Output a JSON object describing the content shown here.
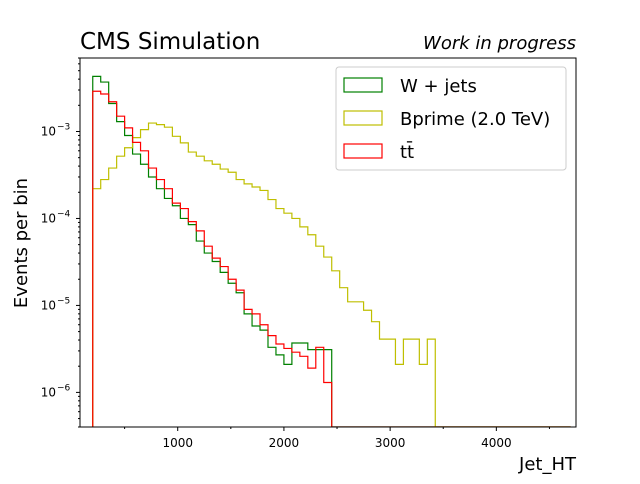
{
  "header": {
    "title": "CMS Simulation",
    "status": "Work in progress"
  },
  "chart_data": {
    "type": "histogram",
    "xlabel": "Jet_HT",
    "ylabel": "Events per bin",
    "xlim": [
      80,
      4750
    ],
    "ylim": [
      4e-07,
      0.007
    ],
    "yscale": "log",
    "grid": false,
    "legend_position": "top-right",
    "x_tick_labels": [
      "1000",
      "2000",
      "3000",
      "4000"
    ],
    "x_ticks": [
      1000,
      2000,
      3000,
      4000
    ],
    "y_tick_labels": [
      {
        "base": "10",
        "exp": "−3",
        "value": 0.001
      },
      {
        "base": "10",
        "exp": "−4",
        "value": 0.0001
      },
      {
        "base": "10",
        "exp": "−5",
        "value": 1e-05
      },
      {
        "base": "10",
        "exp": "−6",
        "value": 1e-06
      }
    ],
    "bin_edges_start": 200,
    "bin_width": 75,
    "series": [
      {
        "name": "W + jets",
        "color": "#008000",
        "values": [
          0.0043,
          0.0037,
          0.0021,
          0.0013,
          0.0009,
          0.00055,
          0.00042,
          0.0003,
          0.00022,
          0.00017,
          0.00014,
          0.0001,
          8.5e-05,
          5.5e-05,
          4e-05,
          3.2e-05,
          2.4e-05,
          1.8e-05,
          1.4e-05,
          8e-06,
          5.8e-06,
          5.2e-06,
          3.3e-06,
          2.7e-06,
          2.1e-06,
          3.7e-06,
          3.7e-06,
          3.1e-06,
          3.1e-06,
          3.1e-06,
          4e-07,
          4e-07,
          4e-07,
          4e-07,
          4e-07,
          4e-07,
          4e-07,
          4e-07,
          4e-07,
          4e-07,
          4e-07,
          4e-07,
          4e-07,
          4e-07,
          4e-07,
          4e-07,
          4e-07,
          4e-07,
          4e-07,
          4e-07,
          4e-07,
          4e-07,
          4e-07,
          4e-07,
          4e-07,
          4e-07,
          4e-07,
          4e-07,
          4e-07,
          4e-07
        ]
      },
      {
        "name": "Bprime(2.0 TeV)",
        "color": "#bfbf00",
        "values": [
          0.00022,
          0.00028,
          0.00038,
          0.00052,
          0.00065,
          0.00085,
          0.00105,
          0.00125,
          0.0012,
          0.00112,
          0.00088,
          0.00074,
          0.00058,
          0.00052,
          0.00046,
          0.00042,
          0.00037,
          0.00034,
          0.00028,
          0.00025,
          0.00023,
          0.00021,
          0.000165,
          0.00013,
          0.000115,
          0.0001,
          8e-05,
          6.5e-05,
          4.8e-05,
          3.6e-05,
          2.5e-05,
          1.6e-05,
          1.1e-05,
          1.1e-05,
          8.8e-06,
          6.5e-06,
          4.1e-06,
          4.1e-06,
          2.1e-06,
          4.1e-06,
          4.1e-06,
          2.1e-06,
          4.1e-06,
          4e-07,
          4e-07,
          4e-07,
          4e-07,
          4e-07,
          4e-07,
          4e-07,
          4e-07,
          4e-07,
          4e-07,
          4e-07,
          4e-07,
          4e-07,
          4e-07,
          4e-07,
          4e-07,
          4e-07
        ]
      },
      {
        "name": "t̄t̄",
        "color": "#ff0000",
        "values": [
          0.0029,
          0.0027,
          0.0022,
          0.0015,
          0.0011,
          0.00075,
          0.0006,
          0.00038,
          0.00028,
          0.00022,
          0.00015,
          0.00013,
          9.2e-05,
          7.2e-05,
          4.8e-05,
          3.5e-05,
          2.8e-05,
          2e-05,
          1.5e-05,
          9e-06,
          8e-06,
          6e-06,
          4.5e-06,
          3.6e-06,
          3.2e-06,
          2.9e-06,
          2.6e-06,
          1.9e-06,
          3.3e-06,
          1.3e-06,
          4e-07,
          4e-07,
          4e-07,
          4e-07,
          4e-07,
          4e-07,
          4e-07,
          4e-07,
          4e-07,
          4e-07,
          4e-07,
          4e-07,
          4e-07,
          4e-07,
          4e-07,
          4e-07,
          4e-07,
          4e-07,
          4e-07,
          4e-07,
          4e-07,
          4e-07,
          4e-07,
          4e-07,
          4e-07,
          4e-07,
          4e-07,
          4e-07,
          4e-07,
          4e-07
        ]
      }
    ]
  },
  "legend": {
    "items": [
      {
        "label": "W + jets",
        "color": "#008000"
      },
      {
        "label": "Bprime (2.0 TeV)",
        "color": "#bfbf00"
      },
      {
        "label": "tt̄",
        "color": "#ff0000"
      }
    ]
  }
}
